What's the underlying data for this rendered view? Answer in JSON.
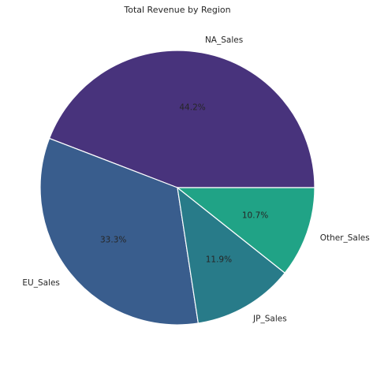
{
  "chart_data": {
    "type": "pie",
    "title": "Total Revenue by Region",
    "categories": [
      "NA_Sales",
      "EU_Sales",
      "JP_Sales",
      "Other_Sales"
    ],
    "values": [
      44.2,
      33.3,
      11.9,
      10.7
    ],
    "percent_labels": [
      "44.2%",
      "33.3%",
      "11.9%",
      "10.7%"
    ],
    "colors": [
      "#48337c",
      "#395d8d",
      "#287b89",
      "#20a386"
    ],
    "start_angle_deg": 0,
    "direction": "counterclockwise",
    "legend": "none"
  }
}
